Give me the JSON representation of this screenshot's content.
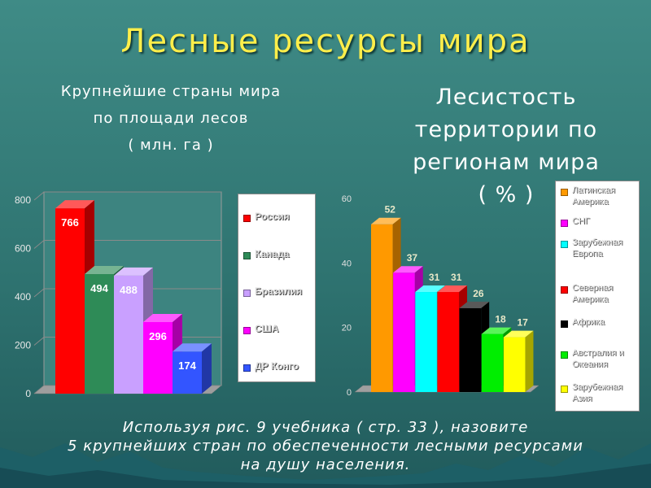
{
  "title": "Лесные ресурсы мира",
  "left_subtitle": [
    "Крупнейшие страны мира",
    "по площади лесов",
    "( млн. га )"
  ],
  "right_subtitle": [
    "Лесистость",
    "территории по",
    "регионам мира",
    "( % )"
  ],
  "footer": [
    "Используя рис. 9 учебника ( стр. 33 ), назовите",
    "5 крупнейших стран по обеспеченности лесными ресурсами",
    "на душу населения."
  ],
  "chart_data": [
    {
      "type": "bar",
      "title": "",
      "ylim": [
        0,
        800
      ],
      "yticks": [
        "0",
        "200",
        "400",
        "600",
        "800"
      ],
      "grid": true,
      "legend_position": "right",
      "categories": [
        "Россия",
        "Канада",
        "Бразилия",
        "США",
        "ДР Конго"
      ],
      "values": [
        766,
        494,
        488,
        296,
        174
      ],
      "data_labels": [
        "766",
        "494",
        "488",
        "296",
        "174"
      ],
      "colors": [
        "#ff0000",
        "#2e8b57",
        "#c9a0ff",
        "#ff00ff",
        "#3355ff"
      ]
    },
    {
      "type": "bar",
      "title": "",
      "ylim": [
        0,
        60
      ],
      "yticks": [
        "0",
        "20",
        "40",
        "60"
      ],
      "grid": false,
      "legend_position": "right",
      "categories": [
        "Латинская Америка",
        "СНГ",
        "Зарубежная Европа",
        "Северная Америка",
        "Африка",
        "Австралия и Океания",
        "Зарубежная Азия"
      ],
      "values": [
        52,
        37,
        31,
        31,
        26,
        18,
        17
      ],
      "data_labels": [
        "52",
        "37",
        "31",
        "31",
        "26",
        "18",
        "17"
      ],
      "colors": [
        "#ff9900",
        "#ff00ff",
        "#00ffff",
        "#ff0000",
        "#000000",
        "#00ee00",
        "#ffff00"
      ]
    }
  ]
}
